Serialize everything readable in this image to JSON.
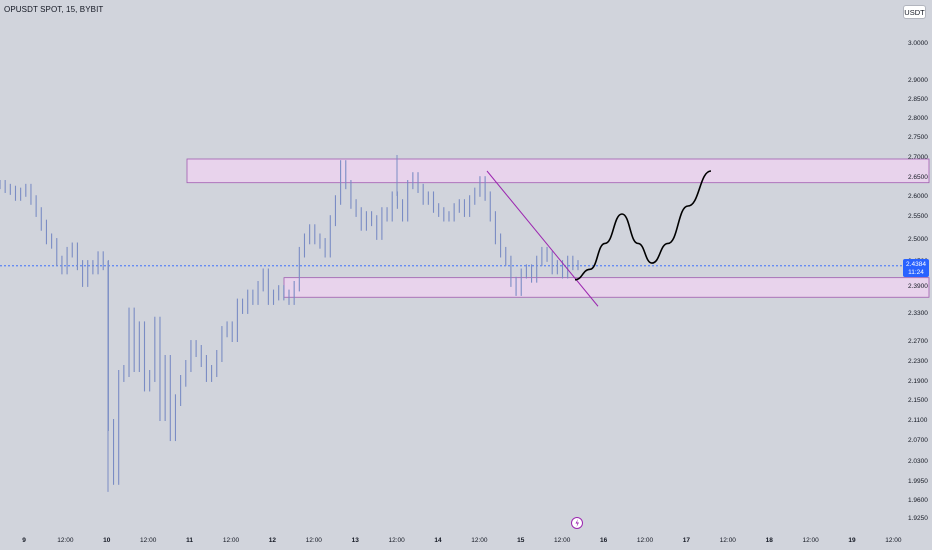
{
  "header": {
    "title": "OPUSDT SPOT, 15, BYBIT",
    "currency_button": "USDT"
  },
  "price_tag": {
    "price": "2.4384",
    "countdown": "11:24"
  },
  "colors": {
    "background": "#d1d4dc",
    "candle": "#7a8cc4",
    "zone_fill": "#e8d3ec",
    "zone_border": "#a05cb0",
    "trendline": "#9c27b0",
    "projection": "#000000",
    "current_price": "#2962ff",
    "flash_icon": "#9c27b0"
  },
  "icons": {
    "event_marker": "flash-icon"
  },
  "chart_data": {
    "type": "line",
    "title": "OPUSDT SPOT, 15, BYBIT",
    "xlabel": "",
    "ylabel": "",
    "ylim": [
      1.9,
      3.05
    ],
    "y_ticks": [
      "3.0000",
      "2.9000",
      "2.8500",
      "2.8000",
      "2.7500",
      "2.7000",
      "2.6500",
      "2.6000",
      "2.5500",
      "2.5000",
      "2.4500",
      "2.3900",
      "2.3300",
      "2.2700",
      "2.2300",
      "2.1900",
      "2.1500",
      "2.1100",
      "2.0700",
      "2.0300",
      "1.9950",
      "1.9600",
      "1.9250"
    ],
    "x_ticks": [
      {
        "label": "9",
        "day": true
      },
      {
        "label": "12:00",
        "day": false
      },
      {
        "label": "10",
        "day": true
      },
      {
        "label": "12:00",
        "day": false
      },
      {
        "label": "11",
        "day": true
      },
      {
        "label": "12:00",
        "day": false
      },
      {
        "label": "12",
        "day": true
      },
      {
        "label": "12:00",
        "day": false
      },
      {
        "label": "13",
        "day": true
      },
      {
        "label": "12:00",
        "day": false
      },
      {
        "label": "14",
        "day": true
      },
      {
        "label": "12:00",
        "day": false
      },
      {
        "label": "15",
        "day": true
      },
      {
        "label": "12:00",
        "day": false
      },
      {
        "label": "16",
        "day": true
      },
      {
        "label": "12:00",
        "day": false
      },
      {
        "label": "17",
        "day": true
      },
      {
        "label": "12:00",
        "day": false
      },
      {
        "label": "18",
        "day": true
      },
      {
        "label": "12:00",
        "day": false
      },
      {
        "label": "19",
        "day": true
      },
      {
        "label": "12:00",
        "day": false
      }
    ],
    "current_price": 2.4384,
    "series": [
      {
        "values": [
          2.63,
          2.62,
          2.615,
          2.6,
          2.61,
          2.62,
          2.59,
          2.56,
          2.53,
          2.5,
          2.49,
          2.45,
          2.43,
          2.47,
          2.48,
          2.44,
          2.4,
          2.44,
          2.43,
          2.46,
          2.44,
          2.1,
          2.0,
          2.2,
          2.21,
          2.33,
          2.22,
          2.3,
          2.18,
          2.2,
          2.31,
          2.12,
          2.23,
          2.08,
          2.15,
          2.19,
          2.22,
          2.26,
          2.25,
          2.23,
          2.2,
          2.21,
          2.24,
          2.29,
          2.3,
          2.28,
          2.35,
          2.34,
          2.37,
          2.36,
          2.39,
          2.42,
          2.36,
          2.37,
          2.38,
          2.37,
          2.36,
          2.39,
          2.47,
          2.5,
          2.52,
          2.5,
          2.49,
          2.47,
          2.54,
          2.59,
          2.68,
          2.63,
          2.58,
          2.56,
          2.53,
          2.55,
          2.54,
          2.51,
          2.56,
          2.55,
          2.6,
          2.58,
          2.55,
          2.63,
          2.65,
          2.62,
          2.59,
          2.6,
          2.57,
          2.56,
          2.55,
          2.55,
          2.57,
          2.58,
          2.56,
          2.59,
          2.61,
          2.64,
          2.6,
          2.55,
          2.5,
          2.47,
          2.45,
          2.4,
          2.38,
          2.42,
          2.43,
          2.41,
          2.45,
          2.47,
          2.46,
          2.43,
          2.44,
          2.42,
          2.45,
          2.44,
          2.44
        ]
      }
    ],
    "resistance_zone": [
      2.635,
      2.695
    ],
    "support_zone": [
      2.365,
      2.41
    ],
    "trendline": [
      [
        2.68,
        "start"
      ],
      [
        2.33,
        "end"
      ]
    ]
  }
}
